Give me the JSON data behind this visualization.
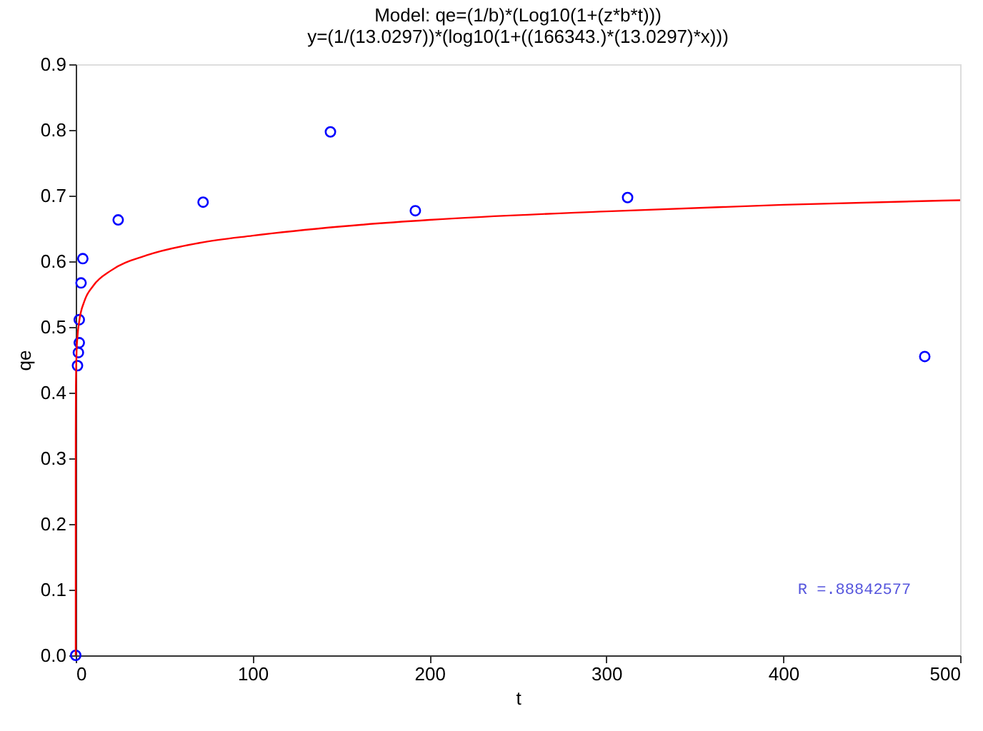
{
  "chart_data": {
    "type": "scatter",
    "title": "Model:  qe=(1/b)*(Log10(1+(z*b*t)))",
    "subtitle": "y=(1/(13.0297))*(log10(1+((166343.)*(13.0297)*x)))",
    "xlabel": "t",
    "ylabel": "qe",
    "xlim": [
      0,
      500
    ],
    "xticks": [
      0,
      100,
      200,
      300,
      400,
      500
    ],
    "ylim": [
      0,
      0.9
    ],
    "yticks": [
      {
        "value": 0,
        "label": "0.0"
      },
      0.1,
      0.2,
      0.3,
      0.4,
      0.5,
      0.6,
      0.7,
      0.8,
      0.9
    ],
    "grid": false,
    "marker": "circle",
    "series": [
      {
        "color": "#0000ff",
        "x": [
          0,
          1,
          1.5,
          2,
          2,
          3,
          4,
          24,
          72,
          144,
          192,
          312,
          480
        ],
        "values": [
          0,
          0.441,
          0.461,
          0.476,
          0.511,
          0.567,
          0.604,
          0.663,
          0.69,
          0.797,
          0.677,
          0.697,
          0.455
        ]
      },
      {
        "type": "line",
        "color": "#ff0000",
        "marker": "none",
        "line_style": "solid",
        "x": [
          0,
          0.001,
          0.01,
          0.1,
          0.5,
          1,
          2,
          5,
          10,
          20,
          40,
          70,
          100,
          150,
          200,
          300,
          400,
          500
        ],
        "values": [
          0,
          0.256,
          0.333,
          0.41,
          0.463,
          0.486,
          0.509,
          0.54,
          0.563,
          0.586,
          0.609,
          0.628,
          0.639,
          0.653,
          0.663,
          0.676,
          0.686,
          0.693
        ]
      }
    ],
    "annotations": [
      "R =.88842577"
    ]
  }
}
